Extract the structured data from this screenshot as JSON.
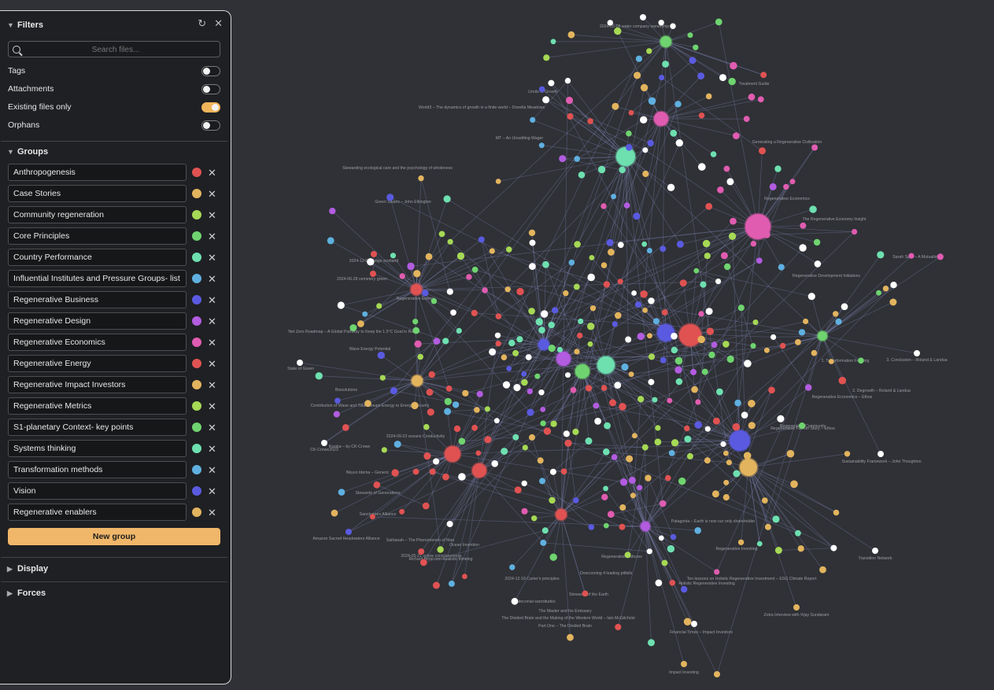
{
  "filters": {
    "title": "Filters",
    "search_placeholder": "Search files...",
    "toggles": [
      {
        "label": "Tags",
        "on": false
      },
      {
        "label": "Attachments",
        "on": false
      },
      {
        "label": "Existing files only",
        "on": true
      },
      {
        "label": "Orphans",
        "on": false
      }
    ]
  },
  "groups": {
    "title": "Groups",
    "items": [
      {
        "label": "Anthropogenesis",
        "color": "#e05252"
      },
      {
        "label": "Case Stories",
        "color": "#e3b45e"
      },
      {
        "label": "Community regeneration",
        "color": "#a6d955"
      },
      {
        "label": "Core Principles",
        "color": "#6fd46f"
      },
      {
        "label": "Country Performance",
        "color": "#6ee0b0"
      },
      {
        "label": "Influential Institutes and Pressure Groups- list",
        "color": "#5fb0e0"
      },
      {
        "label": "Regenerative Business",
        "color": "#5a5ae0"
      },
      {
        "label": "Regenerative Design",
        "color": "#b25ce0"
      },
      {
        "label": "Regenerative Economics",
        "color": "#e05cb0"
      },
      {
        "label": "Regenerative Energy",
        "color": "#e05252"
      },
      {
        "label": "Regenerative Impact Investors",
        "color": "#e3b45e"
      },
      {
        "label": "Regenerative Metrics",
        "color": "#a6d955"
      },
      {
        "label": "S1-planetary Context- key points",
        "color": "#6fd46f"
      },
      {
        "label": "Systems thinking",
        "color": "#6ee0b0"
      },
      {
        "label": "Transformation methods",
        "color": "#5fb0e0"
      },
      {
        "label": "Vision",
        "color": "#5a5ae0"
      },
      {
        "label": "Regenerative enablers",
        "color": "#e3b45e"
      }
    ],
    "new_group_label": "New group"
  },
  "display": {
    "title": "Display"
  },
  "forces": {
    "title": "Forces"
  },
  "graph_labels": [
    "2024-05-08 water company ownership",
    "World3 – The dynamics of growth in a finite world – Donella Meadows",
    "Limits to Growth",
    "MT – An Unsettling Wager",
    "Treatment Guide",
    "Generating a Regenerative Civilisation",
    "Stewarding ecological care and the psychology of wholeness",
    "Green Swans – John Elkington",
    "2024-12-03 indigo scotland",
    "2024-06-28 cemetery green",
    "Regenerative Energy",
    "Net Zero Roadmap – A Global Pathway to Keep the 1.5°C Goal in Reach",
    "Wave Energy Potential",
    "State of Green",
    "Biosolutions",
    "Contribution of Wave and Tidal Stream Energy to Energy Security",
    "2024-09-23 oceans Conductivity",
    "Kwaba – by CK-Crowe",
    "CK-Crowe2023",
    "Nkyun Idema – Generic",
    "Stewards of Generations",
    "Sanctuaries Alliance",
    "Amazon Sacred Headwaters Alliance",
    "Sathanah – The Phenomenon of Man",
    "2024-05-21 online consciousness",
    "Richard Birtel non-dualistic thinking",
    "Ocean Invention",
    "2024-12-18 Carter's principles",
    "Hauteconial sanctitudes",
    "The Master and his Emissary",
    "The Divided Brain and the Making of the Western World – Iain McGilchrist",
    "Part One – The Divided Brain",
    "Stewards of the Earth",
    "Regenerative Cultures",
    "Overcoming 4 leading pitfalls",
    "Patagonia – Earth is now our only shareholder",
    "Holistic Regenerative Investing",
    "Ten lessons on Holistic Regenerative Investment – ESG Climate Report",
    "Zotra Interview with Vijay Sundaram",
    "Regenerative Investing",
    "Impact Investing",
    "Financial Times – Impact Investors",
    "Sustainability Framework – John Thoughton",
    "Transition Network",
    "Regenerative Economics",
    "The Regenerative Economy Insight",
    "1. Transformation Framing",
    "2. Degrowth – Roland & Landua",
    "3. Conclusion – Roland & Landua",
    "Sarah Szell – A Mutualist",
    "Regenerative Development Initiatives",
    "Regenerative Community",
    "Regenerative Economics – Ethos",
    "Regenerative Farmer Story – Ethos"
  ]
}
